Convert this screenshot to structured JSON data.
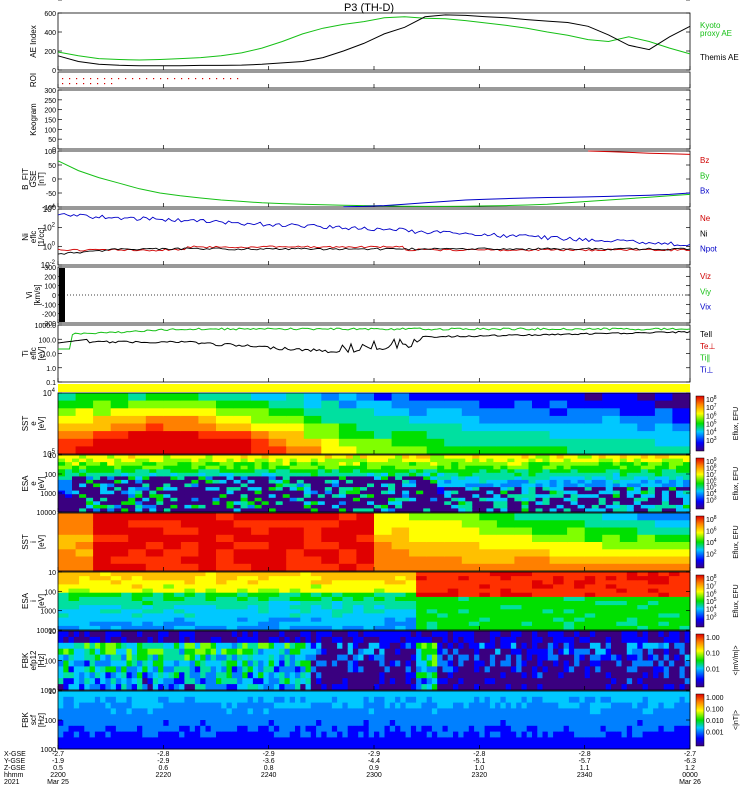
{
  "title": "P3 (TH-D)",
  "colors": {
    "green": "#16c016",
    "red": "#d00000",
    "blue": "#0000c8",
    "black": "#000000",
    "yellow": "#ffff00"
  },
  "time_axis": {
    "row_labels": [
      "X-GSE",
      "Y-GSE",
      "Z-GSE",
      "hhmm",
      "2021"
    ],
    "columns": [
      {
        "x": "-2.7",
        "y": "-1.9",
        "z": "0.5",
        "t": "2200",
        "d": "Mar 25"
      },
      {
        "x": "-2.8",
        "y": "-2.9",
        "z": "0.6",
        "t": "2220",
        "d": ""
      },
      {
        "x": "-2.9",
        "y": "-3.6",
        "z": "0.8",
        "t": "2240",
        "d": ""
      },
      {
        "x": "-2.9",
        "y": "-4.4",
        "z": "0.9",
        "t": "2300",
        "d": ""
      },
      {
        "x": "-2.8",
        "y": "-5.1",
        "z": "1.0",
        "t": "2320",
        "d": ""
      },
      {
        "x": "-2.8",
        "y": "-5.7",
        "z": "1.1",
        "t": "2340",
        "d": ""
      },
      {
        "x": "-2.7",
        "y": "-6.3",
        "z": "1.2",
        "t": "0000",
        "d": "Mar 26"
      }
    ]
  },
  "chart_data": [
    {
      "type": "line",
      "id": "ae",
      "ylabel": "AE Index",
      "ylim": [
        0,
        600
      ],
      "yticks": [
        "0",
        "200",
        "400",
        "600"
      ],
      "series": [
        {
          "name": "Kyoto proxy AE",
          "color": "#16c016",
          "values": [
            190,
            150,
            120,
            110,
            105,
            110,
            120,
            130,
            150,
            180,
            230,
            300,
            380,
            440,
            480,
            510,
            550,
            560,
            545,
            540,
            520,
            495,
            470,
            440,
            400,
            365,
            320,
            300,
            350,
            300,
            230,
            170
          ]
        },
        {
          "name": "Themis AE",
          "color": "#000000",
          "values": [
            150,
            90,
            60,
            50,
            45,
            45,
            45,
            48,
            48,
            52,
            60,
            75,
            90,
            130,
            200,
            280,
            380,
            450,
            560,
            580,
            575,
            560,
            550,
            530,
            515,
            500,
            460,
            370,
            260,
            215,
            350,
            460
          ]
        }
      ],
      "legend_labels": [
        "Kyoto",
        "proxy AE",
        "Themis AE"
      ]
    },
    {
      "type": "scatter",
      "id": "roi",
      "ylabel": "ROI",
      "rows": 2,
      "description_marks": "red dotted rows"
    },
    {
      "type": "line",
      "id": "keogram",
      "ylabel": "Keogram",
      "ylim": [
        0,
        300
      ],
      "yticks": [
        "0",
        "50",
        "100",
        "150",
        "200",
        "250",
        "300"
      ]
    },
    {
      "type": "line",
      "id": "bfit",
      "ylabel": [
        "B_FIT",
        "GSE",
        "[nT]"
      ],
      "ylim": [
        -100,
        100
      ],
      "yticks": [
        "-100",
        "-50",
        "0",
        "50",
        "100"
      ],
      "series": [
        {
          "name": "Bz",
          "color": "#d00000",
          "values": [
            null,
            null,
            null,
            null,
            null,
            null,
            null,
            null,
            null,
            null,
            null,
            null,
            null,
            null,
            null,
            null,
            null,
            null,
            null,
            null,
            null,
            null,
            null,
            null,
            null,
            null,
            100,
            98,
            95,
            92,
            90,
            88
          ]
        },
        {
          "name": "By",
          "color": "#16c016",
          "values": [
            65,
            30,
            5,
            -15,
            -35,
            -50,
            -60,
            -68,
            -75,
            -80,
            -85,
            -88,
            -90,
            -92,
            -94,
            -95,
            -96,
            -97,
            -98,
            -98,
            -97,
            -96,
            -95,
            -93,
            -90,
            -85,
            -80,
            -75,
            -70,
            -65,
            -60,
            -55
          ]
        },
        {
          "name": "Bx",
          "color": "#0000c8",
          "values": [
            null,
            null,
            null,
            null,
            null,
            null,
            null,
            null,
            null,
            null,
            null,
            null,
            null,
            null,
            -99,
            -98,
            -95,
            -90,
            -85,
            -80,
            -75,
            -72,
            -70,
            -68,
            -66,
            -65,
            -64,
            -62,
            -60,
            -58,
            -55,
            -50
          ]
        }
      ]
    },
    {
      "type": "line",
      "id": "density",
      "ylabel": [
        "Ni",
        "eflc",
        "[1/cc]"
      ],
      "yticks": [
        "10^-2",
        "10^0",
        "10^2",
        "10^4"
      ],
      "series": [
        {
          "name": "Ne",
          "color": "#d00000"
        },
        {
          "name": "Ni",
          "color": "#000000"
        },
        {
          "name": "Npot",
          "color": "#0000c8"
        }
      ]
    },
    {
      "type": "line",
      "id": "velocity",
      "ylabel": [
        "Vi",
        "[km/s]"
      ],
      "ylim": [
        -300,
        300
      ],
      "yticks": [
        "-300",
        "-200",
        "-100",
        "0",
        "100",
        "200",
        "300"
      ],
      "series": [
        {
          "name": "Viz",
          "color": "#d00000"
        },
        {
          "name": "Viy",
          "color": "#16c016"
        },
        {
          "name": "Vix",
          "color": "#0000c8"
        }
      ]
    },
    {
      "type": "line",
      "id": "temperature",
      "ylabel": [
        "Ti",
        "eflc",
        "[eV]"
      ],
      "yticks": [
        "0.1",
        "1.0",
        "10.0",
        "100.0",
        "1000.0"
      ],
      "series": [
        {
          "name": "Tell",
          "color": "#000000"
        },
        {
          "name": "Te⊥",
          "color": "#d00000"
        },
        {
          "name": "Ti∥",
          "color": "#16c016"
        },
        {
          "name": "Ti⊥",
          "color": "#0000c8"
        }
      ]
    },
    {
      "type": "heatmap",
      "id": "sst_e",
      "ylabel": [
        "SST",
        "e",
        "[eV]"
      ],
      "yticks": [
        "10^5",
        "10^4"
      ],
      "colorbar_label": "Eflux, EFU",
      "colorbar_ticks": [
        "10^8",
        "10^7",
        "10^6",
        "10^5",
        "10^4",
        "10^3"
      ]
    },
    {
      "type": "heatmap",
      "id": "esa_e",
      "ylabel": [
        "ESA",
        "e",
        "[eV]"
      ],
      "yticks": [
        "10000",
        "1000",
        "100",
        "10"
      ],
      "colorbar_label": "Eflux, EFU",
      "colorbar_ticks": [
        "10^9",
        "10^8",
        "10^7",
        "10^6",
        "10^5",
        "10^4",
        "10^3"
      ]
    },
    {
      "type": "heatmap",
      "id": "sst_i",
      "ylabel": [
        "SST",
        "i",
        "[eV]"
      ],
      "yticks": [
        "10^5"
      ],
      "colorbar_label": "Eflux, EFU",
      "colorbar_ticks": [
        "10^8",
        "10^6",
        "10^4",
        "10^2"
      ]
    },
    {
      "type": "heatmap",
      "id": "esa_i",
      "ylabel": [
        "ESA",
        "i",
        "[eV]"
      ],
      "yticks": [
        "10000",
        "1000",
        "100",
        "10"
      ],
      "colorbar_label": "Eflux, EFU",
      "colorbar_ticks": [
        "10^8",
        "10^7",
        "10^6",
        "10^5",
        "10^4",
        "10^3"
      ]
    },
    {
      "type": "heatmap",
      "id": "fbk_e",
      "ylabel": [
        "FBK",
        "efp12",
        "[Hz]"
      ],
      "yticks": [
        "1000",
        "100",
        "10"
      ],
      "colorbar_label": "<|mV/m|>",
      "colorbar_ticks": [
        "1.00",
        "0.10",
        "0.01"
      ]
    },
    {
      "type": "heatmap",
      "id": "fbk_b",
      "ylabel": [
        "FBK",
        "scf",
        "[Hz]"
      ],
      "yticks": [
        "1000",
        "100",
        "10"
      ],
      "colorbar_label": "<|nT|>",
      "colorbar_ticks": [
        "1.000",
        "0.100",
        "0.010",
        "0.001"
      ]
    }
  ]
}
